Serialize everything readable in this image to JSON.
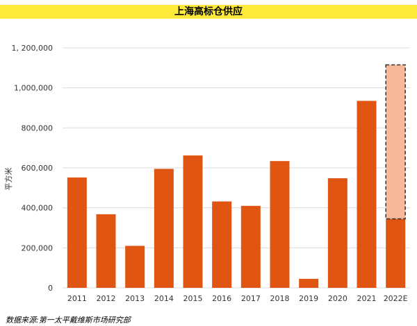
{
  "chart_data": {
    "type": "bar",
    "title": "上海高标仓供应",
    "ylabel": "平方米",
    "xlabel": "",
    "categories": [
      "2011",
      "2012",
      "2013",
      "2014",
      "2015",
      "2016",
      "2017",
      "2018",
      "2019",
      "2020",
      "2021",
      "2022E"
    ],
    "values": [
      552000,
      368000,
      210000,
      595000,
      662000,
      432000,
      410000,
      634000,
      45000,
      548000,
      935000,
      345000
    ],
    "forecast_extra": {
      "category": "2022E",
      "base": 345000,
      "top": 1115000
    },
    "ylim": [
      0,
      1200000
    ],
    "yticks": [
      0,
      200000,
      400000,
      600000,
      800000,
      1000000,
      1200000
    ],
    "ytick_labels": [
      "0",
      "200,000",
      "400,000",
      "600,000",
      "800,000",
      "1,000,000",
      "1, 200,000"
    ],
    "grid": true,
    "legend": "none",
    "colors": {
      "bar": "#e05512",
      "forecast_fill": "#f6b99b",
      "forecast_border": "#333333",
      "title_band": "#fde93a"
    }
  },
  "source_note": "数据来源:第一太平戴维斯市场研究部"
}
